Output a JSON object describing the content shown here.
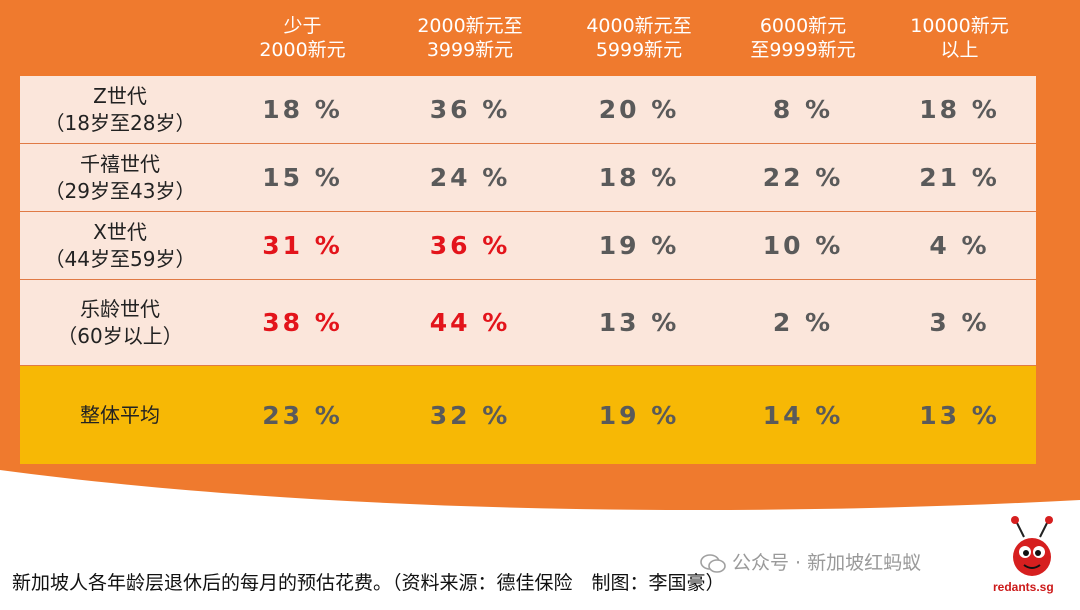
{
  "chart_data": {
    "type": "table",
    "columns": [
      "少于\n2000新元",
      "2000新元至\n3999新元",
      "4000新元至\n5999新元",
      "6000新元\n至9999新元",
      "10000新元\n以上"
    ],
    "rows": [
      {
        "label": "Z世代\n（18岁至28岁）",
        "values": [
          "18 %",
          "36 %",
          "20 %",
          "8 %",
          "18 %"
        ],
        "highlight": [
          false,
          false,
          false,
          false,
          false
        ]
      },
      {
        "label": "千禧世代\n（29岁至43岁）",
        "values": [
          "15 %",
          "24 %",
          "18 %",
          "22 %",
          "21 %"
        ],
        "highlight": [
          false,
          false,
          false,
          false,
          false
        ]
      },
      {
        "label": "X世代\n（44岁至59岁）",
        "values": [
          "31 %",
          "36 %",
          "19 %",
          "10 %",
          "4 %"
        ],
        "highlight": [
          true,
          true,
          false,
          false,
          false
        ]
      },
      {
        "label": "乐龄世代\n（60岁以上）",
        "values": [
          "38 %",
          "44 %",
          "13 %",
          "2 %",
          "3 %"
        ],
        "highlight": [
          true,
          true,
          false,
          false,
          false
        ]
      },
      {
        "label": "整体平均",
        "values": [
          "23 %",
          "32 %",
          "19 %",
          "14 %",
          "13 %"
        ],
        "highlight": [
          false,
          false,
          false,
          false,
          false
        ]
      }
    ],
    "colors": {
      "background": "#ef7a2e",
      "row_fill": "#fbe6db",
      "average_fill": "#f7b805",
      "value_text": "#5a5a5a",
      "highlight_text": "#e3141b"
    }
  },
  "caption": "新加坡人各年龄层退休后的每月的预估花费。（资料来源：德佳保险　制图：李国豪）",
  "watermark": "公众号 · 新加坡红蚂蚁",
  "logo_text": "redants.sg"
}
